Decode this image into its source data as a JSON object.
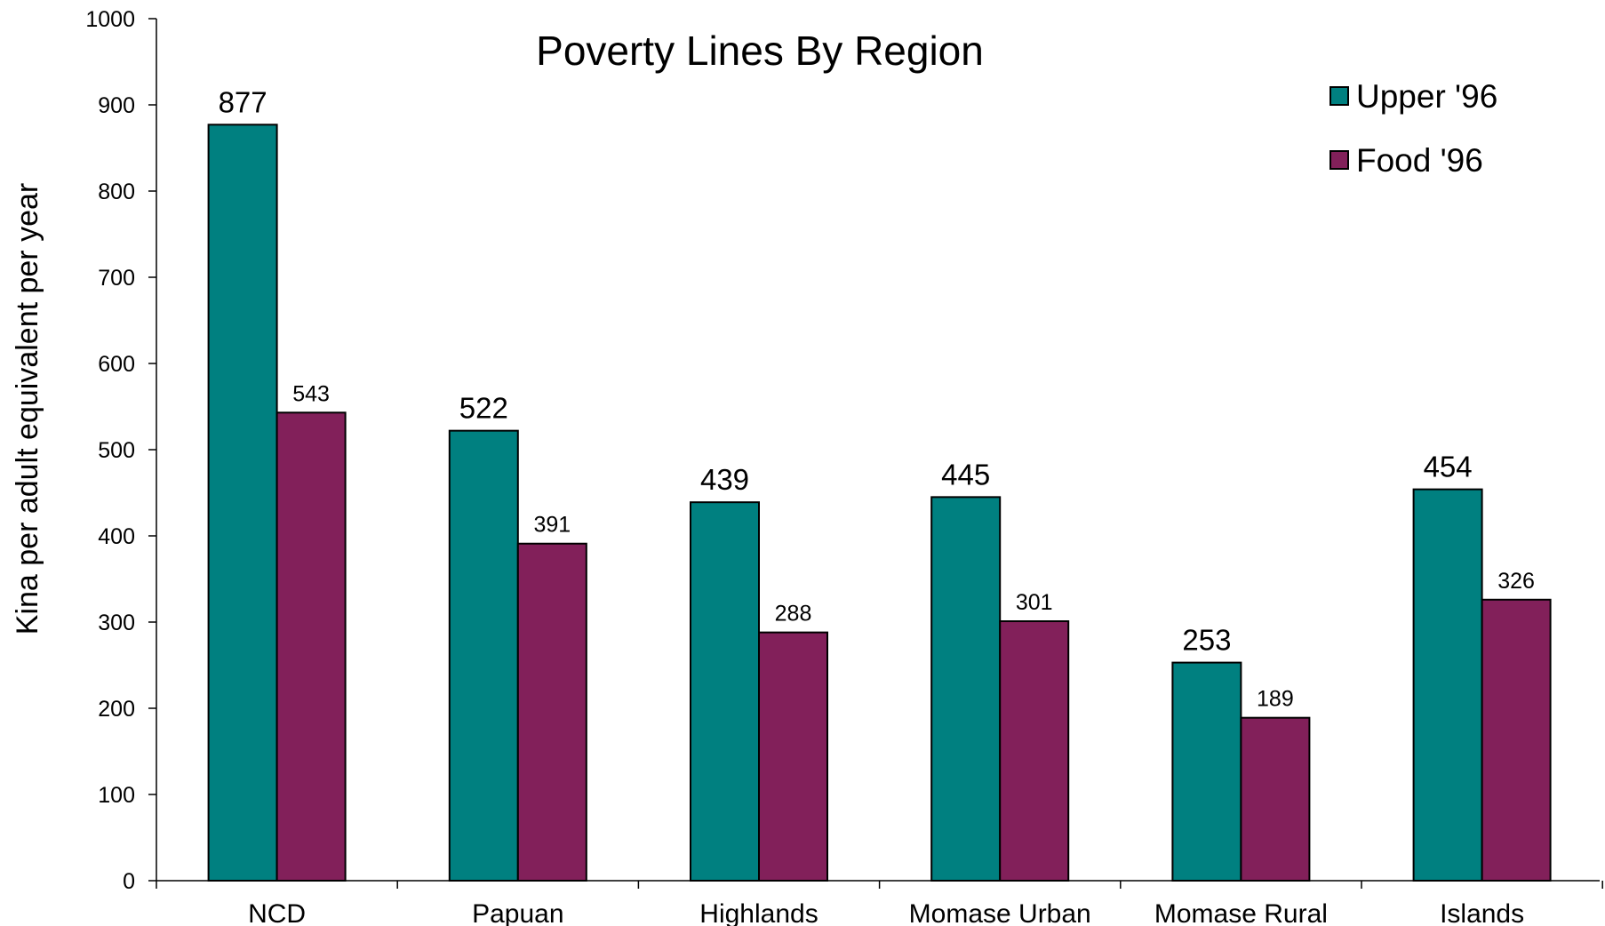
{
  "chart_data": {
    "type": "bar",
    "title": "Poverty Lines By Region",
    "xlabel": "",
    "ylabel": "Kina per adult equivalent per year",
    "ylim": [
      0,
      1000
    ],
    "yticks": [
      0,
      100,
      200,
      300,
      400,
      500,
      600,
      700,
      800,
      900,
      1000
    ],
    "ytick_labels": [
      "0",
      "100",
      "200",
      "300",
      "400",
      "500",
      "600",
      "700",
      "800",
      "900",
      "1000"
    ],
    "categories": [
      "NCD",
      "Papuan",
      "Highlands",
      "Momase Urban",
      "Momase Rural",
      "Islands"
    ],
    "series": [
      {
        "name": "Upper '96",
        "values": [
          877,
          522,
          439,
          445,
          253,
          454
        ],
        "color": "#008080"
      },
      {
        "name": "Food '96",
        "values": [
          543,
          391,
          288,
          301,
          189,
          326
        ],
        "color": "#82205A"
      }
    ],
    "legend": "top-right",
    "grid": false
  }
}
